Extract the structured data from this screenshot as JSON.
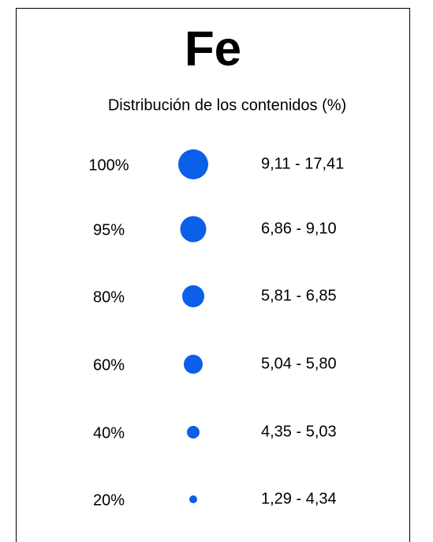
{
  "legend": {
    "title": "Fe",
    "subtitle": "Distribución de los contenidos (%)",
    "rows": [
      {
        "label": "100%",
        "range": "9,11 - 17,41"
      },
      {
        "label": "95%",
        "range": "6,86 - 9,10"
      },
      {
        "label": "80%",
        "range": "5,81 - 6,85"
      },
      {
        "label": "60%",
        "range": "5,04 - 5,80"
      },
      {
        "label": "40%",
        "range": "4,35 - 5,03"
      },
      {
        "label": "20%",
        "range": "1,29 - 4,34"
      }
    ]
  }
}
